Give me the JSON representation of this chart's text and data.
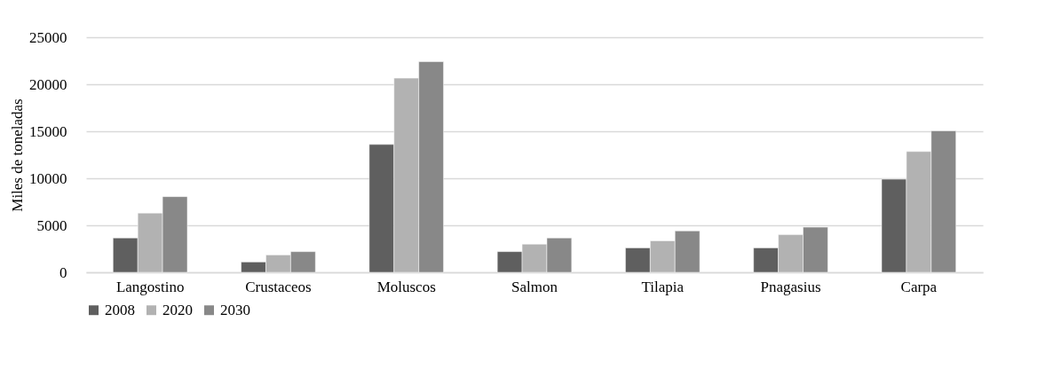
{
  "chart_data": {
    "type": "bar",
    "ylabel": "Miles de toneladas",
    "categories": [
      "Langostino",
      "Crustaceos",
      "Moluscos",
      "Salmon",
      "Tilapia",
      "Pnagasius",
      "Carpa"
    ],
    "series": [
      {
        "name": "2008",
        "color": "#5f5f5f",
        "values": [
          3650,
          1100,
          13600,
          2200,
          2600,
          2600,
          9900
        ]
      },
      {
        "name": "2020",
        "color": "#b2b2b2",
        "values": [
          6300,
          1850,
          20650,
          3000,
          3350,
          4000,
          12850
        ]
      },
      {
        "name": "2030",
        "color": "#888888",
        "values": [
          8050,
          2200,
          22400,
          3650,
          4400,
          4800,
          15050
        ]
      }
    ],
    "ylim": [
      0,
      25000
    ],
    "yticks": [
      0,
      5000,
      10000,
      15000,
      20000,
      25000
    ],
    "grid": "y",
    "legend": "bottom"
  }
}
